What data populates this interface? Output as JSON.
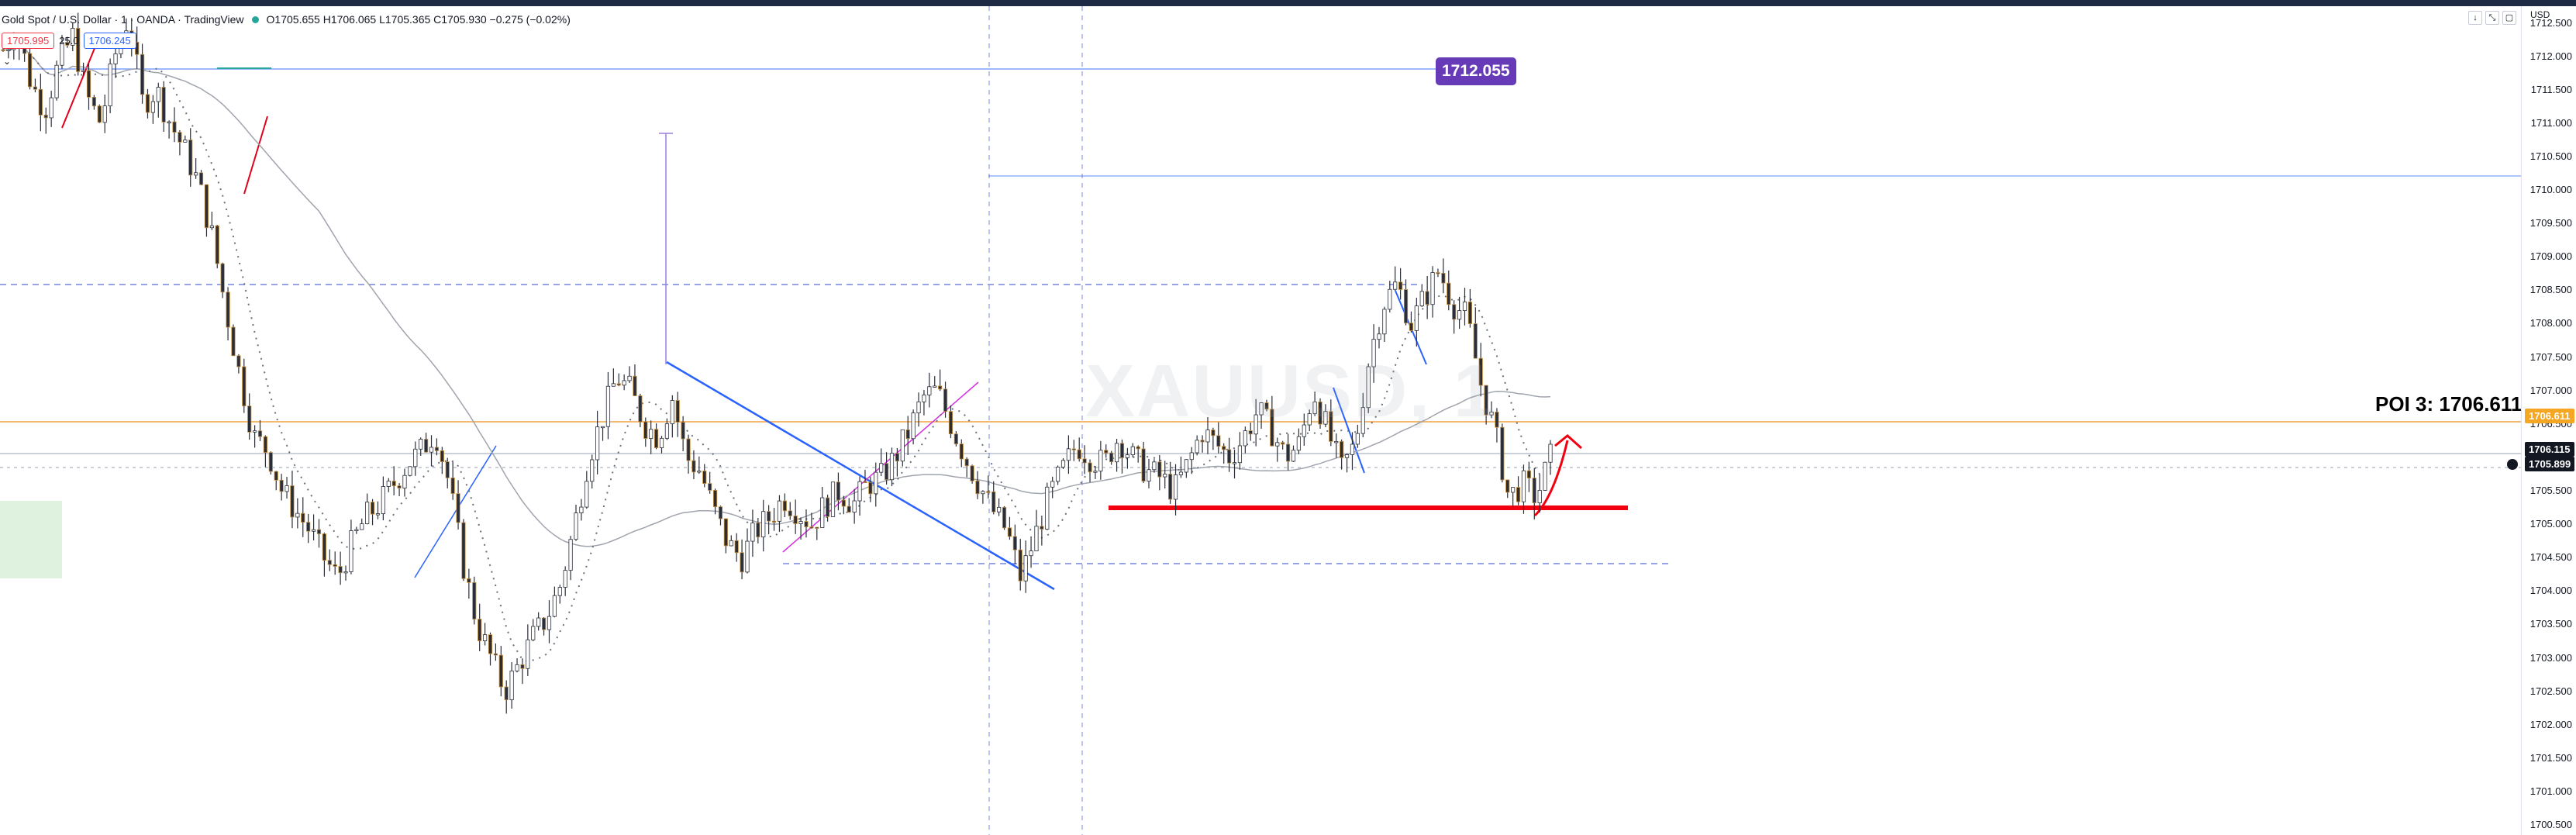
{
  "window": {
    "symbol": "Gold Spot / U.S. Dollar · 1 · OANDA · TradingView",
    "status_dot_color": "#26a69a",
    "ohlc": "O1705.655 H1706.065 L1705.365 C1705.930 −0.275 (−0.02%)",
    "currency": "USD"
  },
  "trade_panel": {
    "sell_price": "1705.995",
    "spread": "25.0",
    "buy_price": "1706.245"
  },
  "collapse_icon": "chevron-down-icon",
  "watermark": {
    "ticker": "XAUUSD, 1"
  },
  "annotations": {
    "poi_label": "POI 3: 1706.611",
    "horizontal_line_price": "1712.055",
    "horizontal_line_color": "#673ab7",
    "support_line_color": "#f2000f",
    "trend_line_color": "#2962ff",
    "magenta_line_color": "#d32fdf",
    "orange_line_color": "#f0a040"
  },
  "price_axis": {
    "labels": [
      "1712.500",
      "1712.000",
      "1711.500",
      "1711.000",
      "1710.500",
      "1710.000",
      "1709.500",
      "1709.000",
      "1708.500",
      "1708.000",
      "1707.500",
      "1707.000",
      "1706.500",
      "1706.000",
      "1705.500",
      "1705.000",
      "1704.500",
      "1704.000",
      "1703.500",
      "1703.000",
      "1702.500",
      "1702.000",
      "1701.500",
      "1701.000",
      "1700.500"
    ],
    "tags": [
      {
        "value": "1706.611",
        "color": "#f5a623"
      },
      {
        "value": "1706.115",
        "color": "#131722"
      },
      {
        "value": "1705.899",
        "color": "#131722"
      }
    ]
  },
  "chart_data": {
    "type": "candlestick",
    "title": "Gold Spot / U.S. Dollar · 1 · OANDA · TradingView",
    "ylim": [
      1700.35,
      1712.75
    ],
    "bars": 290,
    "close_path": [
      1712.1,
      1712.4,
      1711.6,
      1711.2,
      1711.9,
      1712.3,
      1711.4,
      1711.0,
      1712.0,
      1712.6,
      1711.3,
      1711.5,
      1711.0,
      1710.6,
      1710.1,
      1709.3,
      1708.2,
      1707.2,
      1706.3,
      1706.1,
      1705.5,
      1705.2,
      1704.9,
      1704.5,
      1704.2,
      1704.7,
      1705.1,
      1705.3,
      1705.6,
      1705.9,
      1706.1,
      1706.4,
      1705.6,
      1704.4,
      1703.5,
      1703.0,
      1702.5,
      1702.9,
      1703.3,
      1703.6,
      1704.1,
      1705.0,
      1706.0,
      1706.6,
      1707.2,
      1707.0,
      1706.5,
      1706.3,
      1706.9,
      1706.0,
      1705.8,
      1705.2,
      1704.7,
      1704.5,
      1704.9,
      1705.1,
      1705.4,
      1705.2,
      1705.0,
      1705.3,
      1705.5,
      1705.3,
      1705.6,
      1705.7,
      1706.0,
      1706.4,
      1706.9,
      1707.0,
      1706.5,
      1706.0,
      1705.6,
      1705.2,
      1704.9,
      1704.2,
      1704.8,
      1705.4,
      1705.8,
      1706.2,
      1706.0,
      1705.9,
      1706.3,
      1706.0,
      1705.8,
      1705.7,
      1705.5,
      1705.9,
      1706.4,
      1706.2,
      1706.0,
      1706.3,
      1706.7,
      1706.4,
      1706.0,
      1706.2,
      1707.0,
      1706.4,
      1705.8,
      1706.2,
      1707.5,
      1708.3,
      1708.6,
      1708.0,
      1708.4,
      1708.8,
      1708.3,
      1708.1,
      1707.1,
      1706.4,
      1705.4,
      1705.6,
      1705.4,
      1706.0
    ],
    "key_levels": {
      "resistance": 1712.055,
      "poi": 1706.611,
      "support": 1705.2
    },
    "last_price": 1706.115
  }
}
